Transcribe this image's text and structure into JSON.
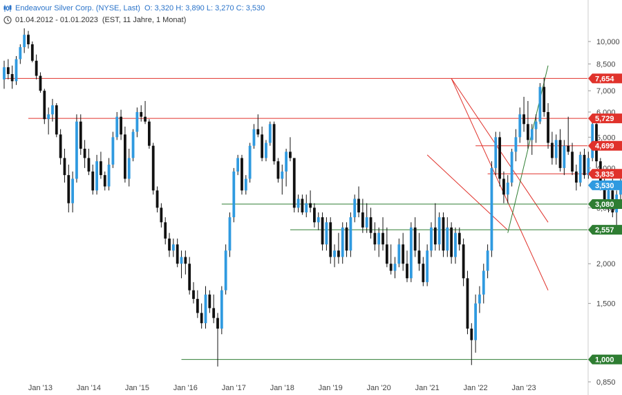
{
  "header": {
    "title": "Endeavour Silver Corp. (NYSE, Last)",
    "ohlc": "O: 3,320  H: 3,890  L: 3,270  C: 3,530",
    "range": "01.04.2012 - 01.01.2023",
    "meta": "(EST, 11 Jahre, 1 Monat)"
  },
  "colors": {
    "up": "#2f9ae0",
    "down": "#111111",
    "resistance": "#e0322b",
    "support": "#2e7d32",
    "last": "#2f9ae0"
  },
  "chart_data": {
    "type": "candlestick",
    "scale": "log",
    "ylim": [
      0.8,
      11.5
    ],
    "y_ticks": [
      "10,000",
      "8,500",
      "7,000",
      "6,000",
      "5,000",
      "4,000",
      "3,000",
      "2,000",
      "1,500",
      "0,850"
    ],
    "y_tick_values": [
      10.0,
      8.5,
      7.0,
      6.0,
      5.0,
      4.0,
      3.0,
      2.0,
      1.5,
      0.85
    ],
    "x_ticks": [
      "Jan '13",
      "Jan '14",
      "Jan '15",
      "Jan '16",
      "Jan '17",
      "Jan '18",
      "Jan '19",
      "Jan '20",
      "Jan '21",
      "Jan '22",
      "Jan '23"
    ],
    "x_tick_dates": [
      "2013-01",
      "2014-01",
      "2015-01",
      "2016-01",
      "2017-01",
      "2018-01",
      "2019-01",
      "2020-01",
      "2021-01",
      "2022-01",
      "2023-01"
    ],
    "first_bar": "2012-04",
    "levels": [
      {
        "label": "7,654",
        "value": 7.654,
        "color": "red",
        "from": "2012-04"
      },
      {
        "label": "5,729",
        "value": 5.729,
        "color": "red",
        "from": "2012-10"
      },
      {
        "label": "4,699",
        "value": 4.699,
        "color": "red",
        "from": "2022-01"
      },
      {
        "label": "3,835",
        "value": 3.835,
        "color": "red",
        "from": "2022-04"
      },
      {
        "label": "3,080",
        "value": 3.08,
        "color": "green",
        "from": "2016-10"
      },
      {
        "label": "2,557",
        "value": 2.557,
        "color": "green",
        "from": "2018-03"
      },
      {
        "label": "1,000",
        "value": 1.0,
        "color": "green",
        "from": "2015-12"
      }
    ],
    "last_value": 3.53,
    "trend_lines": [
      {
        "color": "red",
        "from": [
          "2021-07",
          7.65
        ],
        "to": [
          "2023-07",
          1.65
        ]
      },
      {
        "color": "red",
        "from": [
          "2021-07",
          7.65
        ],
        "to": [
          "2023-07",
          2.7
        ]
      },
      {
        "color": "red",
        "from": [
          "2021-01",
          4.4
        ],
        "to": [
          "2022-09",
          2.55
        ]
      },
      {
        "color": "green",
        "from": [
          "2022-09",
          2.5
        ],
        "to": [
          "2023-07",
          8.4
        ]
      }
    ],
    "ohlc": [
      [
        7.6,
        8.7,
        7.1,
        8.3
      ],
      [
        8.3,
        8.8,
        7.6,
        7.9
      ],
      [
        7.9,
        8.4,
        7.1,
        7.5
      ],
      [
        7.5,
        9.0,
        7.3,
        8.8
      ],
      [
        8.8,
        9.8,
        8.5,
        9.6
      ],
      [
        9.6,
        11.0,
        9.2,
        10.5
      ],
      [
        10.5,
        10.8,
        9.5,
        9.8
      ],
      [
        9.8,
        10.0,
        8.6,
        8.7
      ],
      [
        8.7,
        9.1,
        7.6,
        7.8
      ],
      [
        7.8,
        8.0,
        6.9,
        7.0
      ],
      [
        7.0,
        7.1,
        5.5,
        5.7
      ],
      [
        5.7,
        6.2,
        5.1,
        5.9
      ],
      [
        5.9,
        6.6,
        5.6,
        6.3
      ],
      [
        6.3,
        6.4,
        5.0,
        5.1
      ],
      [
        5.1,
        5.3,
        4.1,
        4.3
      ],
      [
        4.3,
        4.6,
        3.6,
        3.8
      ],
      [
        3.8,
        4.1,
        2.9,
        3.1
      ],
      [
        3.1,
        3.9,
        2.9,
        3.7
      ],
      [
        3.7,
        5.9,
        3.6,
        5.6
      ],
      [
        5.6,
        5.9,
        4.4,
        4.6
      ],
      [
        4.6,
        4.9,
        4.0,
        4.3
      ],
      [
        4.3,
        4.6,
        3.8,
        3.9
      ],
      [
        3.9,
        4.1,
        3.3,
        3.4
      ],
      [
        3.4,
        4.4,
        3.3,
        4.2
      ],
      [
        4.2,
        4.5,
        3.7,
        3.8
      ],
      [
        3.8,
        3.9,
        3.4,
        3.5
      ],
      [
        3.5,
        4.3,
        3.4,
        4.1
      ],
      [
        4.1,
        5.2,
        4.0,
        5.0
      ],
      [
        5.0,
        6.0,
        4.9,
        5.8
      ],
      [
        5.8,
        6.1,
        4.9,
        5.1
      ],
      [
        5.1,
        5.4,
        3.6,
        3.7
      ],
      [
        3.7,
        4.6,
        3.5,
        4.3
      ],
      [
        4.3,
        5.3,
        4.2,
        5.2
      ],
      [
        5.2,
        6.2,
        5.0,
        6.0
      ],
      [
        6.0,
        6.3,
        5.6,
        5.8
      ],
      [
        5.8,
        6.5,
        5.5,
        5.6
      ],
      [
        5.6,
        5.7,
        4.6,
        4.7
      ],
      [
        4.7,
        4.8,
        3.3,
        3.4
      ],
      [
        3.4,
        3.5,
        2.9,
        3.0
      ],
      [
        3.0,
        3.1,
        2.6,
        2.7
      ],
      [
        2.7,
        2.8,
        2.3,
        2.4
      ],
      [
        2.4,
        2.5,
        2.1,
        2.2
      ],
      [
        2.2,
        2.4,
        2.1,
        2.3
      ],
      [
        2.3,
        2.4,
        1.95,
        2.0
      ],
      [
        2.0,
        2.2,
        1.8,
        2.1
      ],
      [
        2.1,
        2.2,
        1.85,
        2.0
      ],
      [
        2.0,
        2.1,
        1.6,
        1.65
      ],
      [
        1.65,
        1.75,
        1.5,
        1.55
      ],
      [
        1.55,
        1.65,
        1.35,
        1.4
      ],
      [
        1.4,
        1.5,
        1.25,
        1.3
      ],
      [
        1.3,
        1.7,
        1.25,
        1.6
      ],
      [
        1.6,
        1.65,
        1.4,
        1.45
      ],
      [
        1.45,
        1.6,
        1.3,
        1.35
      ],
      [
        1.35,
        1.4,
        0.95,
        1.25
      ],
      [
        1.25,
        1.7,
        1.2,
        1.65
      ],
      [
        1.65,
        2.3,
        1.6,
        2.2
      ],
      [
        2.2,
        2.9,
        2.1,
        2.8
      ],
      [
        2.8,
        4.0,
        2.7,
        3.9
      ],
      [
        3.9,
        4.4,
        3.8,
        4.3
      ],
      [
        4.3,
        4.4,
        3.3,
        3.4
      ],
      [
        3.4,
        3.8,
        3.3,
        3.7
      ],
      [
        3.7,
        4.8,
        3.6,
        4.7
      ],
      [
        4.7,
        5.5,
        4.6,
        5.3
      ],
      [
        5.3,
        5.9,
        5.0,
        5.1
      ],
      [
        5.1,
        5.4,
        4.2,
        4.3
      ],
      [
        4.3,
        4.9,
        4.2,
        4.8
      ],
      [
        4.8,
        5.6,
        4.7,
        5.5
      ],
      [
        5.5,
        5.6,
        4.1,
        4.2
      ],
      [
        4.2,
        4.3,
        3.6,
        3.7
      ],
      [
        3.7,
        4.1,
        3.3,
        3.9
      ],
      [
        3.9,
        4.6,
        3.5,
        4.5
      ],
      [
        4.5,
        5.0,
        4.2,
        4.3
      ],
      [
        4.3,
        4.3,
        2.9,
        3.0
      ],
      [
        3.0,
        3.3,
        2.9,
        3.2
      ],
      [
        3.2,
        3.3,
        2.85,
        2.9
      ],
      [
        2.9,
        3.3,
        2.8,
        3.1
      ],
      [
        3.1,
        3.4,
        2.9,
        3.0
      ],
      [
        3.0,
        3.1,
        2.6,
        2.7
      ],
      [
        2.7,
        2.9,
        2.55,
        2.8
      ],
      [
        2.8,
        2.9,
        2.2,
        2.3
      ],
      [
        2.3,
        2.8,
        2.2,
        2.7
      ],
      [
        2.7,
        2.8,
        2.0,
        2.1
      ],
      [
        2.1,
        2.3,
        1.95,
        2.2
      ],
      [
        2.2,
        2.5,
        2.0,
        2.1
      ],
      [
        2.1,
        2.7,
        2.0,
        2.6
      ],
      [
        2.6,
        2.7,
        2.1,
        2.2
      ],
      [
        2.2,
        2.9,
        2.1,
        2.8
      ],
      [
        2.8,
        3.3,
        2.7,
        3.2
      ],
      [
        3.2,
        3.5,
        2.8,
        2.9
      ],
      [
        2.9,
        3.2,
        2.5,
        2.6
      ],
      [
        2.6,
        3.1,
        2.5,
        2.8
      ],
      [
        2.8,
        3.0,
        2.4,
        2.5
      ],
      [
        2.5,
        2.7,
        2.2,
        2.3
      ],
      [
        2.3,
        2.6,
        2.1,
        2.5
      ],
      [
        2.5,
        2.8,
        2.2,
        2.3
      ],
      [
        2.3,
        2.6,
        1.95,
        2.0
      ],
      [
        2.0,
        2.3,
        1.85,
        1.9
      ],
      [
        1.9,
        2.1,
        1.8,
        2.0
      ],
      [
        2.0,
        2.4,
        1.95,
        2.3
      ],
      [
        2.3,
        2.5,
        1.9,
        2.0
      ],
      [
        2.0,
        2.2,
        1.75,
        1.8
      ],
      [
        1.8,
        2.7,
        1.75,
        2.6
      ],
      [
        2.6,
        2.8,
        2.1,
        2.2
      ],
      [
        2.2,
        2.5,
        1.9,
        2.0
      ],
      [
        2.0,
        2.1,
        1.7,
        1.75
      ],
      [
        1.75,
        2.3,
        1.7,
        2.2
      ],
      [
        2.2,
        2.7,
        2.1,
        2.6
      ],
      [
        2.6,
        3.1,
        2.2,
        2.3
      ],
      [
        2.3,
        2.9,
        2.2,
        2.8
      ],
      [
        2.8,
        2.9,
        2.1,
        2.2
      ],
      [
        2.2,
        2.8,
        2.1,
        2.6
      ],
      [
        2.6,
        2.7,
        2.0,
        2.1
      ],
      [
        2.1,
        2.6,
        2.0,
        2.5
      ],
      [
        2.5,
        2.6,
        2.2,
        2.3
      ],
      [
        2.3,
        2.4,
        1.7,
        1.8
      ],
      [
        1.8,
        1.9,
        1.2,
        1.25
      ],
      [
        1.25,
        1.3,
        0.96,
        1.15
      ],
      [
        1.15,
        1.6,
        1.05,
        1.5
      ],
      [
        1.5,
        1.7,
        1.4,
        1.6
      ],
      [
        1.6,
        2.0,
        1.5,
        1.9
      ],
      [
        1.9,
        2.3,
        1.8,
        2.2
      ],
      [
        2.2,
        4.2,
        2.1,
        4.0
      ],
      [
        4.0,
        5.2,
        3.8,
        5.0
      ],
      [
        5.0,
        5.2,
        3.5,
        3.7
      ],
      [
        3.7,
        3.9,
        3.1,
        3.3
      ],
      [
        3.3,
        3.8,
        3.1,
        3.6
      ],
      [
        3.6,
        4.6,
        3.5,
        4.5
      ],
      [
        4.5,
        5.3,
        4.2,
        5.0
      ],
      [
        5.0,
        6.2,
        4.8,
        5.9
      ],
      [
        5.9,
        6.7,
        5.2,
        5.5
      ],
      [
        5.5,
        6.5,
        4.6,
        4.9
      ],
      [
        4.9,
        5.5,
        4.4,
        5.3
      ],
      [
        5.3,
        5.9,
        4.8,
        5.6
      ],
      [
        5.6,
        7.4,
        5.5,
        7.2
      ],
      [
        7.2,
        7.7,
        5.8,
        6.0
      ],
      [
        6.0,
        6.4,
        4.6,
        4.8
      ],
      [
        4.8,
        5.2,
        4.1,
        4.3
      ],
      [
        4.3,
        5.1,
        4.1,
        4.9
      ],
      [
        4.9,
        5.3,
        3.9,
        4.0
      ],
      [
        4.0,
        4.9,
        3.8,
        4.7
      ],
      [
        4.7,
        5.8,
        4.4,
        4.5
      ],
      [
        4.5,
        4.8,
        3.8,
        3.9
      ],
      [
        3.9,
        4.1,
        3.4,
        3.6
      ],
      [
        3.6,
        4.5,
        3.5,
        4.4
      ],
      [
        4.4,
        4.6,
        3.7,
        3.8
      ],
      [
        3.8,
        4.5,
        3.7,
        4.3
      ],
      [
        4.3,
        5.8,
        4.2,
        5.5
      ],
      [
        5.5,
        5.8,
        4.0,
        4.2
      ],
      [
        4.2,
        4.3,
        3.4,
        3.5
      ],
      [
        3.5,
        3.7,
        3.0,
        3.1
      ],
      [
        3.1,
        3.5,
        2.9,
        3.4
      ],
      [
        3.4,
        3.7,
        2.8,
        2.9
      ],
      [
        2.9,
        3.4,
        2.6,
        3.3
      ],
      [
        3.3,
        3.7,
        3.1,
        3.5
      ],
      [
        3.5,
        3.8,
        3.0,
        3.1
      ],
      [
        3.1,
        3.3,
        2.95,
        3.2
      ],
      [
        3.32,
        3.89,
        3.27,
        3.53
      ]
    ]
  }
}
